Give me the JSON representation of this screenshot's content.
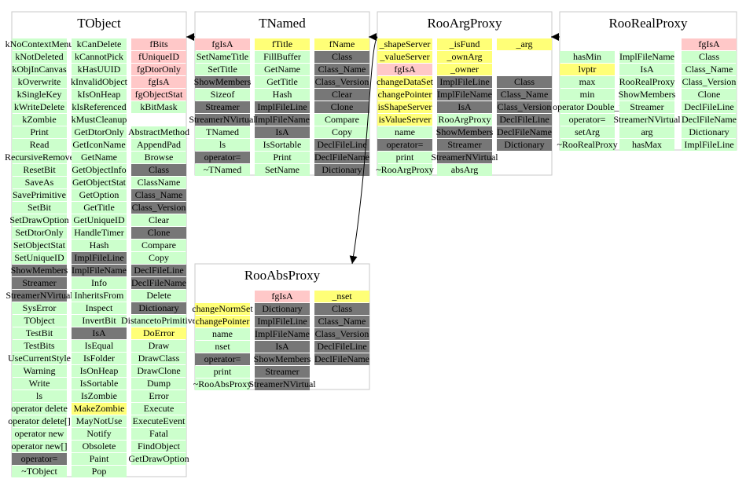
{
  "palette": {
    "g": "#ccffcc",
    "p": "#ffc8c8",
    "y": "#ffff77",
    "d": "#777777"
  },
  "boxes": [
    {
      "title": "TObject",
      "columns": [
        [
          [
            "kNoContextMenu",
            "g"
          ],
          [
            "kNotDeleted",
            "g"
          ],
          [
            "kObjInCanvas",
            "g"
          ],
          [
            "kOverwrite",
            "g"
          ],
          [
            "kSingleKey",
            "g"
          ],
          [
            "kWriteDelete",
            "g"
          ],
          [
            "kZombie",
            "g"
          ],
          [
            "Print",
            "g"
          ],
          [
            "Read",
            "g"
          ],
          [
            "RecursiveRemove",
            "g"
          ],
          [
            "ResetBit",
            "g"
          ],
          [
            "SaveAs",
            "g"
          ],
          [
            "SavePrimitive",
            "g"
          ],
          [
            "SetBit",
            "g"
          ],
          [
            "SetDrawOption",
            "g"
          ],
          [
            "SetDtorOnly",
            "g"
          ],
          [
            "SetObjectStat",
            "g"
          ],
          [
            "SetUniqueID",
            "g"
          ],
          [
            "ShowMembers",
            "d"
          ],
          [
            "Streamer",
            "d"
          ],
          [
            "StreamerNVirtual",
            "d"
          ],
          [
            "SysError",
            "g"
          ],
          [
            "TObject",
            "g"
          ],
          [
            "TestBit",
            "g"
          ],
          [
            "TestBits",
            "g"
          ],
          [
            "UseCurrentStyle",
            "g"
          ],
          [
            "Warning",
            "g"
          ],
          [
            "Write",
            "g"
          ],
          [
            "ls",
            "g"
          ],
          [
            "operator delete",
            "g"
          ],
          [
            "operator delete[]",
            "g"
          ],
          [
            "operator new",
            "g"
          ],
          [
            "operator new[]",
            "g"
          ],
          [
            "operator=",
            "d"
          ],
          [
            "~TObject",
            "g"
          ]
        ],
        [
          [
            "kCanDelete",
            "g"
          ],
          [
            "kCannotPick",
            "g"
          ],
          [
            "kHasUUID",
            "g"
          ],
          [
            "kInvalidObject",
            "g"
          ],
          [
            "kIsOnHeap",
            "g"
          ],
          [
            "kIsReferenced",
            "g"
          ],
          [
            "kMustCleanup",
            "g"
          ],
          [
            "GetDtorOnly",
            "g"
          ],
          [
            "GetIconName",
            "g"
          ],
          [
            "GetName",
            "g"
          ],
          [
            "GetObjectInfo",
            "g"
          ],
          [
            "GetObjectStat",
            "g"
          ],
          [
            "GetOption",
            "g"
          ],
          [
            "GetTitle",
            "g"
          ],
          [
            "GetUniqueID",
            "g"
          ],
          [
            "HandleTimer",
            "g"
          ],
          [
            "Hash",
            "g"
          ],
          [
            "ImplFileLine",
            "d"
          ],
          [
            "ImplFileName",
            "d"
          ],
          [
            "Info",
            "g"
          ],
          [
            "InheritsFrom",
            "g"
          ],
          [
            "Inspect",
            "g"
          ],
          [
            "InvertBit",
            "g"
          ],
          [
            "IsA",
            "d"
          ],
          [
            "IsEqual",
            "g"
          ],
          [
            "IsFolder",
            "g"
          ],
          [
            "IsOnHeap",
            "g"
          ],
          [
            "IsSortable",
            "g"
          ],
          [
            "IsZombie",
            "g"
          ],
          [
            "MakeZombie",
            "y"
          ],
          [
            "MayNotUse",
            "g"
          ],
          [
            "Notify",
            "g"
          ],
          [
            "Obsolete",
            "g"
          ],
          [
            "Paint",
            "g"
          ],
          [
            "Pop",
            "g"
          ]
        ],
        [
          [
            "fBits",
            "p"
          ],
          [
            "fUniqueID",
            "p"
          ],
          [
            "fgDtorOnly",
            "p"
          ],
          [
            "fgIsA",
            "p"
          ],
          [
            "fgObjectStat",
            "p"
          ],
          [
            "kBitMask",
            "g"
          ],
          null,
          [
            "AbstractMethod",
            "g"
          ],
          [
            "AppendPad",
            "g"
          ],
          [
            "Browse",
            "g"
          ],
          [
            "Class",
            "d"
          ],
          [
            "ClassName",
            "g"
          ],
          [
            "Class_Name",
            "d"
          ],
          [
            "Class_Version",
            "d"
          ],
          [
            "Clear",
            "g"
          ],
          [
            "Clone",
            "d"
          ],
          [
            "Compare",
            "g"
          ],
          [
            "Copy",
            "g"
          ],
          [
            "DeclFileLine",
            "d"
          ],
          [
            "DeclFileName",
            "d"
          ],
          [
            "Delete",
            "g"
          ],
          [
            "Dictionary",
            "d"
          ],
          [
            "DistancetoPrimitive",
            "g"
          ],
          [
            "DoError",
            "y"
          ],
          [
            "Draw",
            "g"
          ],
          [
            "DrawClass",
            "g"
          ],
          [
            "DrawClone",
            "g"
          ],
          [
            "Dump",
            "g"
          ],
          [
            "Error",
            "g"
          ],
          [
            "Execute",
            "g"
          ],
          [
            "ExecuteEvent",
            "g"
          ],
          [
            "Fatal",
            "g"
          ],
          [
            "FindObject",
            "g"
          ],
          [
            "GetDrawOption",
            "g"
          ]
        ]
      ]
    },
    {
      "title": "TNamed",
      "columns": [
        [
          [
            "fgIsA",
            "p"
          ],
          [
            "SetNameTitle",
            "g"
          ],
          [
            "SetTitle",
            "g"
          ],
          [
            "ShowMembers",
            "d"
          ],
          [
            "Sizeof",
            "g"
          ],
          [
            "Streamer",
            "d"
          ],
          [
            "StreamerNVirtual",
            "d"
          ],
          [
            "TNamed",
            "g"
          ],
          [
            "ls",
            "g"
          ],
          [
            "operator=",
            "d"
          ],
          [
            "~TNamed",
            "g"
          ]
        ],
        [
          [
            "fTitle",
            "y"
          ],
          [
            "FillBuffer",
            "g"
          ],
          [
            "GetName",
            "g"
          ],
          [
            "GetTitle",
            "g"
          ],
          [
            "Hash",
            "g"
          ],
          [
            "ImplFileLine",
            "d"
          ],
          [
            "ImplFileName",
            "d"
          ],
          [
            "IsA",
            "d"
          ],
          [
            "IsSortable",
            "g"
          ],
          [
            "Print",
            "g"
          ],
          [
            "SetName",
            "g"
          ]
        ],
        [
          [
            "fName",
            "y"
          ],
          [
            "Class",
            "d"
          ],
          [
            "Class_Name",
            "d"
          ],
          [
            "Class_Version",
            "d"
          ],
          [
            "Clear",
            "d"
          ],
          [
            "Clone",
            "d"
          ],
          [
            "Compare",
            "g"
          ],
          [
            "Copy",
            "g"
          ],
          [
            "DeclFileLine",
            "d"
          ],
          [
            "DeclFileName",
            "d"
          ],
          [
            "Dictionary",
            "d"
          ]
        ]
      ]
    },
    {
      "title": "RooArgProxy",
      "columns": [
        [
          [
            "_shapeServer",
            "y"
          ],
          [
            "_valueServer",
            "y"
          ],
          [
            "fgIsA",
            "p"
          ],
          [
            "changeDataSet",
            "y"
          ],
          [
            "changePointer",
            "y"
          ],
          [
            "isShapeServer",
            "y"
          ],
          [
            "isValueServer",
            "y"
          ],
          [
            "name",
            "g"
          ],
          [
            "operator=",
            "d"
          ],
          [
            "print",
            "g"
          ],
          [
            "~RooArgProxy",
            "g"
          ]
        ],
        [
          [
            "_isFund",
            "y"
          ],
          [
            "_ownArg",
            "y"
          ],
          [
            "_owner",
            "y"
          ],
          [
            "ImplFileLine",
            "d"
          ],
          [
            "ImplFileName",
            "d"
          ],
          [
            "IsA",
            "d"
          ],
          [
            "RooArgProxy",
            "g"
          ],
          [
            "ShowMembers",
            "d"
          ],
          [
            "Streamer",
            "d"
          ],
          [
            "StreamerNVirtual",
            "d"
          ],
          [
            "absArg",
            "g"
          ]
        ],
        [
          [
            "_arg",
            "y"
          ],
          null,
          null,
          [
            "Class",
            "d"
          ],
          [
            "Class_Name",
            "d"
          ],
          [
            "Class_Version",
            "d"
          ],
          [
            "DeclFileLine",
            "d"
          ],
          [
            "DeclFileName",
            "d"
          ],
          [
            "Dictionary",
            "d"
          ]
        ]
      ]
    },
    {
      "title": "RooRealProxy",
      "columns": [
        [
          null,
          [
            "hasMin",
            "g"
          ],
          [
            "lvptr",
            "y"
          ],
          [
            "max",
            "g"
          ],
          [
            "min",
            "g"
          ],
          [
            "operator Double_t",
            "g"
          ],
          [
            "operator=",
            "g"
          ],
          [
            "setArg",
            "g"
          ],
          [
            "~RooRealProxy",
            "g"
          ]
        ],
        [
          null,
          [
            "ImplFileName",
            "g"
          ],
          [
            "IsA",
            "g"
          ],
          [
            "RooRealProxy",
            "g"
          ],
          [
            "ShowMembers",
            "g"
          ],
          [
            "Streamer",
            "g"
          ],
          [
            "StreamerNVirtual",
            "g"
          ],
          [
            "arg",
            "g"
          ],
          [
            "hasMax",
            "g"
          ]
        ],
        [
          [
            "fgIsA",
            "p"
          ],
          [
            "Class",
            "g"
          ],
          [
            "Class_Name",
            "g"
          ],
          [
            "Class_Version",
            "g"
          ],
          [
            "Clone",
            "g"
          ],
          [
            "DeclFileLine",
            "g"
          ],
          [
            "DeclFileName",
            "g"
          ],
          [
            "Dictionary",
            "g"
          ],
          [
            "ImplFileLine",
            "g"
          ]
        ]
      ]
    },
    {
      "title": "RooAbsProxy",
      "columns": [
        [
          null,
          [
            "changeNormSet",
            "y"
          ],
          [
            "changePointer",
            "y"
          ],
          [
            "name",
            "g"
          ],
          [
            "nset",
            "g"
          ],
          [
            "operator=",
            "d"
          ],
          [
            "print",
            "g"
          ],
          [
            "~RooAbsProxy",
            "g"
          ]
        ],
        [
          [
            "fgIsA",
            "p"
          ],
          [
            "Dictionary",
            "d"
          ],
          [
            "ImplFileLine",
            "d"
          ],
          [
            "ImplFileName",
            "d"
          ],
          [
            "IsA",
            "d"
          ],
          [
            "ShowMembers",
            "d"
          ],
          [
            "Streamer",
            "d"
          ],
          [
            "StreamerNVirtual",
            "d"
          ]
        ],
        [
          [
            "_nset",
            "y"
          ],
          [
            "Class",
            "d"
          ],
          [
            "Class_Name",
            "d"
          ],
          [
            "Class_Version",
            "d"
          ],
          [
            "DeclFileLine",
            "d"
          ],
          [
            "DeclFileName",
            "d"
          ]
        ]
      ]
    }
  ]
}
